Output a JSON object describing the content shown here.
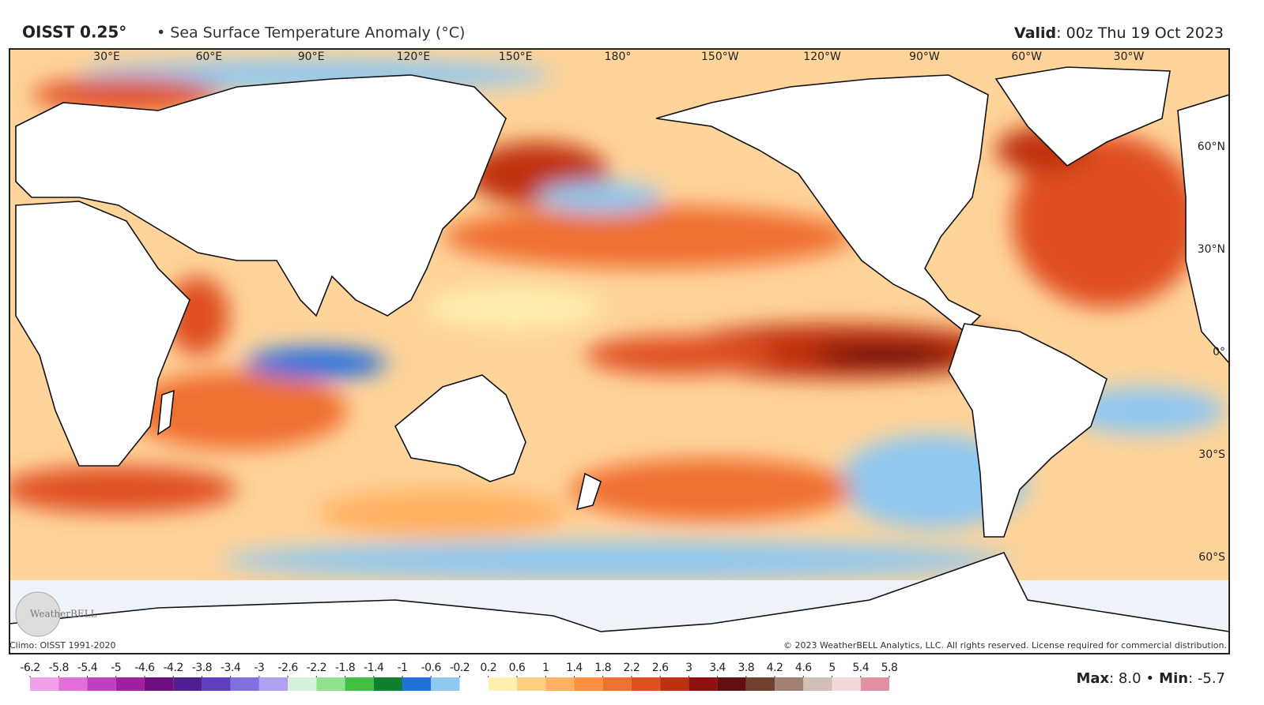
{
  "header": {
    "title": "OISST 0.25°",
    "subtitle": "• Sea Surface Temperature Anomaly (°C)",
    "valid_label": "Valid",
    "valid_text": ": 00z Thu 19 Oct 2023"
  },
  "map": {
    "lon_labels": [
      "30°E",
      "60°E",
      "90°E",
      "120°E",
      "150°E",
      "180°",
      "150°W",
      "120°W",
      "90°W",
      "60°W",
      "30°W"
    ],
    "lat_labels": [
      "60°N",
      "30°N",
      "0°",
      "30°S",
      "60°S"
    ],
    "logo": "WeatherBELL"
  },
  "footer": {
    "climo": "Climo: OISST 1991-2020",
    "copyright": "© 2023 WeatherBELL Analytics, LLC. All rights reserved. License required for commercial distribution."
  },
  "colorbar": {
    "ticks": [
      -6.2,
      -5.8,
      -5.4,
      -5,
      -4.6,
      -4.2,
      -3.8,
      -3.4,
      -3,
      -2.6,
      -2.2,
      -1.8,
      -1.4,
      -1,
      -0.6,
      -0.2,
      0.2,
      0.6,
      1,
      1.4,
      1.8,
      2.2,
      2.6,
      3,
      3.4,
      3.8,
      4.2,
      4.6,
      5,
      5.4,
      5.8
    ],
    "colors": [
      "#f0a0e8",
      "#e070d8",
      "#c040c0",
      "#a020a0",
      "#701080",
      "#502090",
      "#6040c0",
      "#8070e0",
      "#b0a0f0",
      "#d8f0d8",
      "#90e090",
      "#40c040",
      "#108030",
      "#2070e0",
      "#90c8f0",
      "#ffffff",
      "#fff0b0",
      "#ffd080",
      "#ffb060",
      "#ff9040",
      "#f07030",
      "#e05020",
      "#c03010",
      "#901010",
      "#601010",
      "#704030",
      "#a08070",
      "#d0c0b8",
      "#f0d8d8",
      "#e090a0"
    ]
  },
  "stats": {
    "max_label": "Max",
    "max": {
      "value": 8,
      "label": "8.0"
    },
    "separator": "•",
    "min_label": "Min",
    "min": -5.7
  }
}
